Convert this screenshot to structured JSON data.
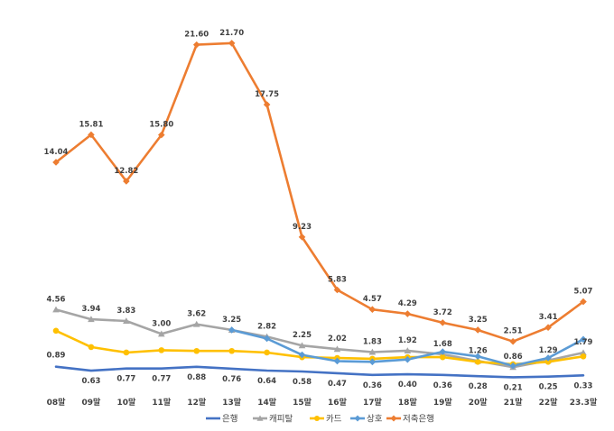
{
  "chart_data": {
    "type": "line",
    "categories": [
      "08말",
      "09말",
      "10말",
      "11말",
      "12말",
      "13말",
      "14말",
      "15말",
      "16말",
      "17말",
      "18말",
      "19말",
      "20말",
      "21말",
      "22말",
      "23.3말"
    ],
    "ylim": [
      0,
      23
    ],
    "grid": false,
    "legend_position": "bottom",
    "series": [
      {
        "name": "은행",
        "color": "#4472c4",
        "marker": "none",
        "values": [
          0.89,
          0.63,
          0.77,
          0.77,
          0.88,
          0.76,
          0.64,
          0.58,
          0.47,
          0.36,
          0.4,
          0.36,
          0.28,
          0.21,
          0.25,
          0.33
        ],
        "labels": [
          "0.89",
          "0.63",
          "0.77",
          "0.77",
          "0.88",
          "0.76",
          "0.64",
          "0.58",
          "0.47",
          "0.36",
          "0.40",
          "0.36",
          "0.28",
          "0.21",
          "0.25",
          "0.33"
        ]
      },
      {
        "name": "캐피탈",
        "color": "#a5a5a5",
        "marker": "triangle",
        "values": [
          4.56,
          3.94,
          3.83,
          3.0,
          3.62,
          3.25,
          2.82,
          2.25,
          2.02,
          1.83,
          1.92,
          1.68,
          1.26,
          0.86,
          1.29,
          1.79
        ],
        "labels": [
          "4.56",
          "3.94",
          "3.83",
          "3.00",
          "3.62",
          "3.25",
          "2.82",
          "2.25",
          "2.02",
          "1.83",
          "1.92",
          "1.68",
          "1.26",
          "0.86",
          "1.29",
          "1.79"
        ]
      },
      {
        "name": "카드",
        "color": "#ffc000",
        "marker": "circle",
        "values": [
          3.2,
          2.15,
          1.8,
          1.95,
          1.9,
          1.9,
          1.8,
          1.5,
          1.45,
          1.4,
          1.5,
          1.5,
          1.2,
          1.05,
          1.2,
          1.55
        ]
      },
      {
        "name": "상호",
        "color": "#5b9bd5",
        "marker": "diamond",
        "values": [
          null,
          null,
          null,
          null,
          null,
          3.25,
          2.7,
          1.65,
          1.25,
          1.2,
          1.35,
          1.85,
          1.55,
          0.95,
          1.45,
          2.65
        ]
      },
      {
        "name": "저축은행",
        "color": "#ed7d31",
        "marker": "diamond",
        "values": [
          14.04,
          15.81,
          12.82,
          15.8,
          21.6,
          21.7,
          17.75,
          9.23,
          5.83,
          4.57,
          4.29,
          3.72,
          3.25,
          2.51,
          3.41,
          5.07
        ],
        "labels": [
          "14.04",
          "15.81",
          "12.82",
          "15.80",
          "21.60",
          "21.70",
          "17.75",
          "9.23",
          "5.83",
          "4.57",
          "4.29",
          "3.72",
          "3.25",
          "2.51",
          "3.41",
          "5.07"
        ]
      }
    ]
  }
}
